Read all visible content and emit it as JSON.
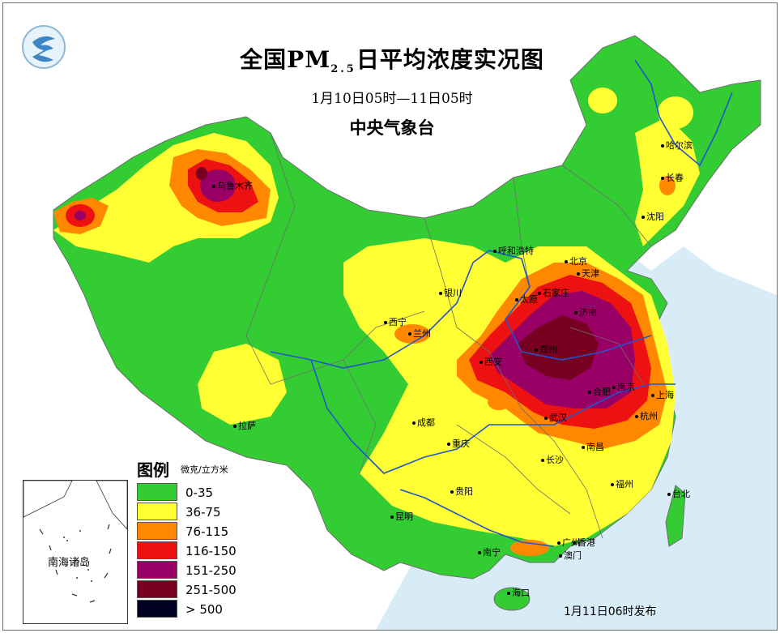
{
  "title": {
    "main_prefix": "全国PM",
    "main_sub": "2.5",
    "main_suffix": "日平均浓度实况图",
    "time_range": "1月10日05时—11日05时",
    "organization": "中央气象台"
  },
  "legend": {
    "title": "图例",
    "unit": "微克/立方米",
    "items": [
      {
        "label": "0-35",
        "color": "#33cc33"
      },
      {
        "label": "36-75",
        "color": "#ffff33"
      },
      {
        "label": "76-115",
        "color": "#ff8800"
      },
      {
        "label": "116-150",
        "color": "#ee1111"
      },
      {
        "label": "151-250",
        "color": "#990066"
      },
      {
        "label": "251-500",
        "color": "#770022"
      },
      {
        "label": "> 500",
        "color": "#000022"
      }
    ]
  },
  "inset": {
    "label": "南海诸岛"
  },
  "publish_note": "1月11日06时发布",
  "colors": {
    "sea": "#d7ecf7",
    "land_outside": "#ffffff",
    "river": "#2255cc",
    "boundary": "#6d6d6d"
  },
  "cities": {
    "urumqi": "乌鲁木齐",
    "harbin": "哈尔滨",
    "changchun": "长春",
    "shenyang": "沈阳",
    "hohhot": "呼和浩特",
    "beijing": "北京",
    "tianjin": "天津",
    "shijiazhuang": "石家庄",
    "taiyuan": "太原",
    "jinan": "济南",
    "yinchuan": "银川",
    "xining": "西宁",
    "lanzhou": "兰州",
    "xian": "西安",
    "zhengzhou": "郑州",
    "hefei": "合肥",
    "nanjing": "南京",
    "shanghai": "上海",
    "hangzhou": "杭州",
    "wuhan": "武汉",
    "chengdu": "成都",
    "chongqing": "重庆",
    "lhasa": "拉萨",
    "changsha": "长沙",
    "nanchang": "南昌",
    "fuzhou": "福州",
    "taipei": "台北",
    "guiyang": "贵阳",
    "kunming": "昆明",
    "guangzhou": "广州",
    "hongkong": "香港",
    "macau": "澳门",
    "nanning": "南宁",
    "haikou": "海口"
  }
}
